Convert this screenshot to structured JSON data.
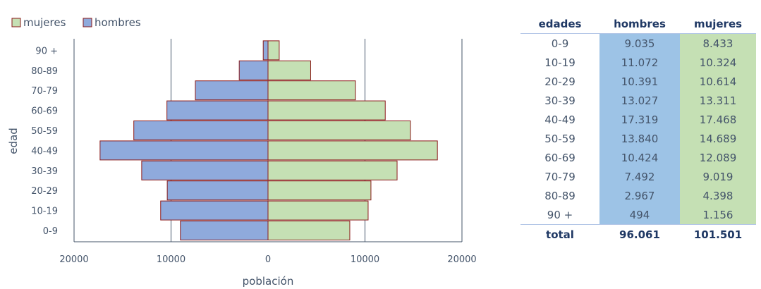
{
  "chart_data": {
    "type": "bar",
    "orientation": "horizontal",
    "categories": [
      "0-9",
      "10-19",
      "20-29",
      "30-39",
      "40-49",
      "50-59",
      "60-69",
      "70-79",
      "80-89",
      "90 +"
    ],
    "series": [
      {
        "name": "mujeres",
        "values": [
          8433,
          10324,
          10614,
          13311,
          17468,
          14689,
          12089,
          9019,
          4398,
          1156
        ]
      },
      {
        "name": "hombres",
        "values": [
          9035,
          11072,
          10391,
          13027,
          17319,
          13840,
          10424,
          7492,
          2967,
          494
        ]
      }
    ],
    "xlabel": "población",
    "ylabel": "edad",
    "xticks": [
      "20000",
      "10000",
      "0",
      "10000",
      "20000"
    ],
    "xlim": [
      -20000,
      20000
    ],
    "legend_position": "top-left",
    "colors": {
      "mujeres": "#c5e0b4",
      "hombres": "#8faadc",
      "bar_border": "#8b1a1a",
      "grid": "#44546a"
    }
  },
  "table": {
    "headers": [
      "edades",
      "hombres",
      "mujeres"
    ],
    "rows": [
      [
        "0-9",
        "9.035",
        "8.433"
      ],
      [
        "10-19",
        "11.072",
        "10.324"
      ],
      [
        "20-29",
        "10.391",
        "10.614"
      ],
      [
        "30-39",
        "13.027",
        "13.311"
      ],
      [
        "40-49",
        "17.319",
        "17.468"
      ],
      [
        "50-59",
        "13.840",
        "14.689"
      ],
      [
        "60-69",
        "10.424",
        "12.089"
      ],
      [
        "70-79",
        "7.492",
        "9.019"
      ],
      [
        "80-89",
        "2.967",
        "4.398"
      ],
      [
        "90 +",
        "494",
        "1.156"
      ]
    ],
    "total": [
      "total",
      "96.061",
      "101.501"
    ]
  }
}
